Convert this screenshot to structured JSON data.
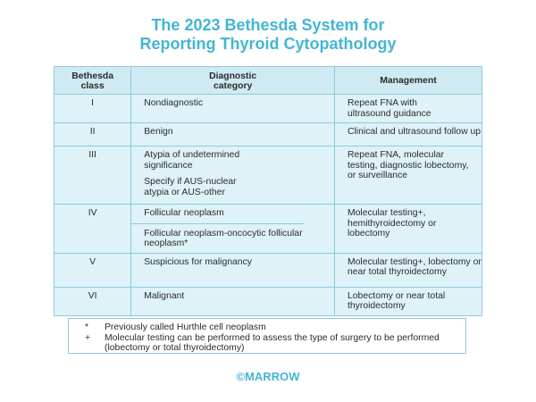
{
  "title": {
    "line1": "The 2023 Bethesda System for",
    "line2": "Reporting Thyroid Cytopathology"
  },
  "table": {
    "headers": {
      "class": "Bethesda class",
      "category": "Diagnostic category",
      "management": "Management"
    },
    "rows": [
      {
        "cls": "I",
        "cat": [
          "Nondiagnostic"
        ],
        "mgmt": "Repeat FNA with ultrasound guidance"
      },
      {
        "cls": "II",
        "cat": [
          "Benign"
        ],
        "mgmt": "Clinical and ultrasound follow up"
      },
      {
        "cls": "III",
        "cat": [
          "Atypia of undetermined significance",
          "Specify if AUS-nuclear atypia or AUS-other"
        ],
        "mgmt": "Repeat FNA, molecular testing, diagnostic lobectomy, or surveillance"
      },
      {
        "cls": "IV",
        "cat": [
          "Follicular neoplasm",
          "Follicular neoplasm-oncocytic follicular neoplasm*"
        ],
        "mgmt": "Molecular testing+, hemithyroidectomy or lobectomy"
      },
      {
        "cls": "V",
        "cat": [
          "Suspicious for malignancy"
        ],
        "mgmt": "Molecular testing+, lobectomy or near total thyroidectomy"
      },
      {
        "cls": "VI",
        "cat": [
          "Malignant"
        ],
        "mgmt": "Lobectomy or near total thyroidectomy"
      }
    ]
  },
  "notes": [
    {
      "symbol": "*",
      "text": "Previously called Hurthle cell neoplasm"
    },
    {
      "symbol": "+",
      "text": "Molecular testing can be performed to assess the type of surgery to be performed (lobectomy or total thyroidectomy)"
    }
  ],
  "brand": "©MARROW",
  "watermark": "MARROW",
  "colors": {
    "accent": "#42b6d3",
    "table_bg": "#def2f8",
    "border": "#8fcadb"
  }
}
